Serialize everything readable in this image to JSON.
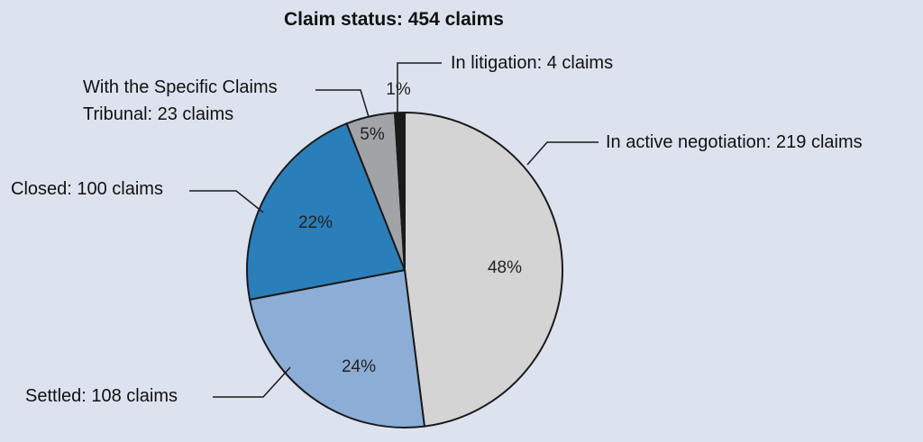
{
  "chart_data": {
    "type": "pie",
    "title": "Claim status: 454 claims",
    "categories": [
      "In active negotiation: 219 claims",
      "Settled: 108 claims",
      "Closed: 100 claims",
      "With the Specific Claims Tribunal: 23 claims",
      "In litigation: 4 claims"
    ],
    "values": [
      48,
      24,
      22,
      5,
      1
    ],
    "value_labels": [
      "48%",
      "24%",
      "22%",
      "5%",
      "1%"
    ],
    "colors": [
      "#d4d4d4",
      "#8caed6",
      "#2a7fba",
      "#a1a3a7",
      "#1a1a1a"
    ]
  }
}
